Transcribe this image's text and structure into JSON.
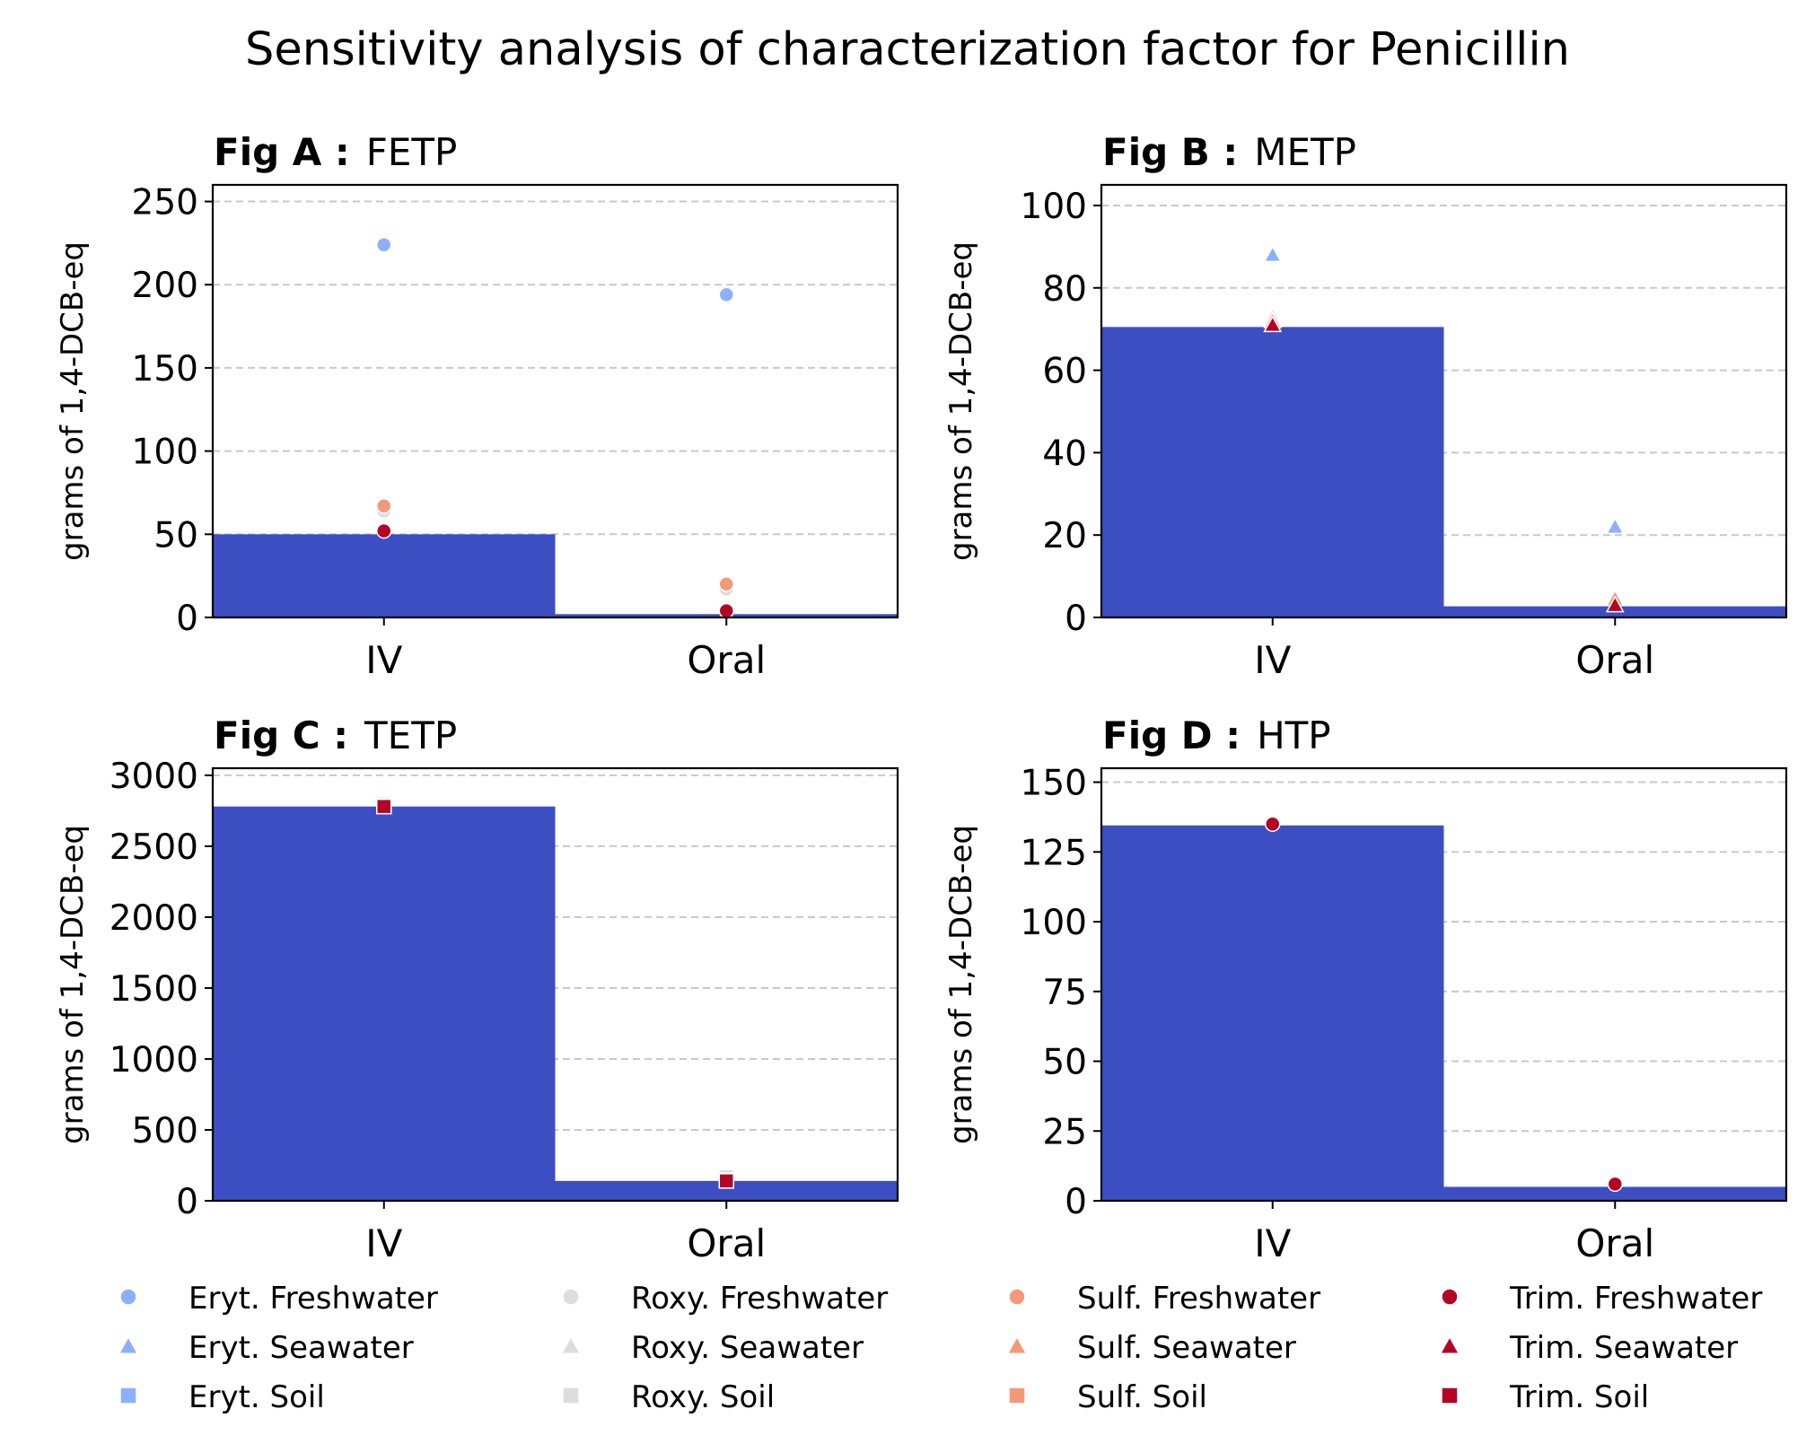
{
  "figure": {
    "title": "Sensitivity analysis of characterization factor for Penicillin"
  },
  "colors": {
    "bar": "#3c4ec2",
    "grid": "#c8c8c8",
    "series": {
      "Eryt.": "#8db0fe",
      "Roxy.": "#dddddd",
      "Sulf.": "#f4987a",
      "Trim.": "#b40426"
    }
  },
  "legend": {
    "placement": "bottom",
    "entries": [
      {
        "label": "Eryt. Freshwater",
        "marker": "circle",
        "color": "#8db0fe"
      },
      {
        "label": "Eryt. Seawater",
        "marker": "triangle",
        "color": "#8db0fe"
      },
      {
        "label": "Eryt. Soil",
        "marker": "square",
        "color": "#8db0fe"
      },
      {
        "label": "Roxy. Freshwater",
        "marker": "circle",
        "color": "#dddddd"
      },
      {
        "label": "Roxy. Seawater",
        "marker": "triangle",
        "color": "#dddddd"
      },
      {
        "label": "Roxy. Soil",
        "marker": "square",
        "color": "#dddddd"
      },
      {
        "label": "Sulf. Freshwater",
        "marker": "circle",
        "color": "#f4987a"
      },
      {
        "label": "Sulf. Seawater",
        "marker": "triangle",
        "color": "#f4987a"
      },
      {
        "label": "Sulf. Soil",
        "marker": "square",
        "color": "#f4987a"
      },
      {
        "label": "Trim. Freshwater",
        "marker": "circle",
        "color": "#b40426"
      },
      {
        "label": "Trim. Seawater",
        "marker": "triangle",
        "color": "#b40426"
      },
      {
        "label": "Trim. Soil",
        "marker": "square",
        "color": "#b40426"
      }
    ]
  },
  "chart_data": [
    {
      "type": "bar",
      "label_bold": "Fig A :",
      "label": "FETP",
      "categories": [
        "IV",
        "Oral"
      ],
      "values": [
        50,
        2
      ],
      "ylabel": "grams of 1,4-DCB-eq",
      "ylim": [
        0,
        260
      ],
      "yticks": [
        0,
        50,
        100,
        150,
        200,
        250
      ],
      "grid": "y-dashed",
      "points": [
        {
          "series": "Eryt. Freshwater",
          "marker": "circle",
          "color": "#8db0fe",
          "values": [
            224,
            194
          ]
        },
        {
          "series": "Roxy. Freshwater",
          "marker": "circle",
          "color": "#dddddd",
          "values": [
            64,
            17
          ]
        },
        {
          "series": "Sulf. Freshwater",
          "marker": "circle",
          "color": "#f4987a",
          "values": [
            67,
            20
          ]
        },
        {
          "series": "Trim. Freshwater",
          "marker": "circle",
          "color": "#b40426",
          "values": [
            52,
            4
          ]
        }
      ]
    },
    {
      "type": "bar",
      "label_bold": "Fig B :",
      "label": "METP",
      "categories": [
        "IV",
        "Oral"
      ],
      "values": [
        70.5,
        2.7
      ],
      "ylabel": "grams of 1,4-DCB-eq",
      "ylim": [
        0,
        105
      ],
      "yticks": [
        0,
        20,
        40,
        60,
        80,
        100
      ],
      "grid": "y-dashed",
      "points": [
        {
          "series": "Eryt. Seawater",
          "marker": "triangle",
          "color": "#8db0fe",
          "values": [
            88,
            22
          ]
        },
        {
          "series": "Roxy. Seawater",
          "marker": "triangle",
          "color": "#dddddd",
          "values": [
            73,
            5
          ]
        },
        {
          "series": "Sulf. Seawater",
          "marker": "triangle",
          "color": "#f4987a",
          "values": [
            72,
            4.5
          ]
        },
        {
          "series": "Trim. Seawater",
          "marker": "triangle",
          "color": "#b40426",
          "values": [
            71,
            3
          ]
        }
      ]
    },
    {
      "type": "bar",
      "label_bold": "Fig C :",
      "label": "TETP",
      "categories": [
        "IV",
        "Oral"
      ],
      "values": [
        2780,
        140
      ],
      "ylabel": "grams of 1,4-DCB-eq",
      "ylim": [
        0,
        3050
      ],
      "yticks": [
        0,
        500,
        1000,
        1500,
        2000,
        2500,
        3000
      ],
      "grid": "y-dashed",
      "points": [
        {
          "series": "Eryt. Soil",
          "marker": "square",
          "color": "#8db0fe",
          "values": [
            2800,
            165
          ]
        },
        {
          "series": "Roxy. Soil",
          "marker": "square",
          "color": "#dddddd",
          "values": [
            2790,
            150
          ]
        },
        {
          "series": "Sulf. Soil",
          "marker": "square",
          "color": "#f4987a",
          "values": [
            2785,
            145
          ]
        },
        {
          "series": "Trim. Soil",
          "marker": "square",
          "color": "#b40426",
          "values": [
            2780,
            140
          ]
        }
      ]
    },
    {
      "type": "bar",
      "label_bold": "Fig D :",
      "label": "HTP",
      "categories": [
        "IV",
        "Oral"
      ],
      "values": [
        134.5,
        5
      ],
      "ylabel": "grams of 1,4-DCB-eq",
      "ylim": [
        0,
        155
      ],
      "yticks": [
        0,
        25,
        50,
        75,
        100,
        125,
        150
      ],
      "grid": "y-dashed",
      "points": [
        {
          "series": "Trim. Freshwater",
          "marker": "circle",
          "color": "#b40426",
          "values": [
            135,
            6
          ]
        }
      ]
    }
  ]
}
